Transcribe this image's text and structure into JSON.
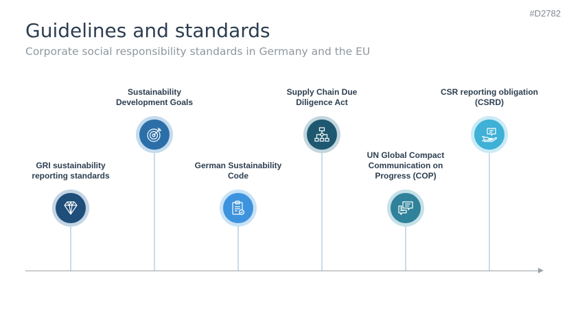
{
  "page_id": "#D2782",
  "title": "Guidelines and standards",
  "subtitle": "Corporate social responsibility standards in Germany and the EU",
  "milestones": [
    {
      "label": "GRI sustainability reporting standards",
      "icon": "diamond-icon",
      "fill": "#1e4e79",
      "ring": "#c3d4e3"
    },
    {
      "label": "Sustainability Development Goals",
      "icon": "target-icon",
      "fill": "#2c6fa8",
      "ring": "#c5dbee"
    },
    {
      "label": "German Sustainability Code",
      "icon": "clipboard-check-icon",
      "fill": "#3d93dd",
      "ring": "#c9e2f6"
    },
    {
      "label": "Supply Chain Due Diligence Act",
      "icon": "flowchart-icon",
      "fill": "#1e5870",
      "ring": "#c3d6de"
    },
    {
      "label": "UN Global Compact Communication on Progress (COP)",
      "icon": "chat-bubbles-icon",
      "fill": "#2f8299",
      "ring": "#c6e0e8"
    },
    {
      "label": "CSR reporting obligation (CSRD)",
      "icon": "hand-message-icon",
      "fill": "#3fb0d6",
      "ring": "#cbebf5"
    }
  ]
}
